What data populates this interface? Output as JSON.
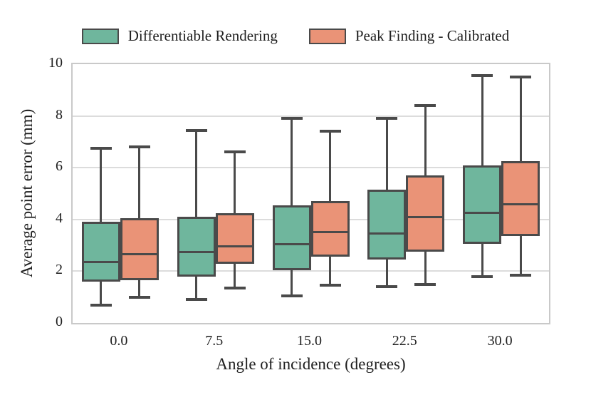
{
  "chart_data": {
    "type": "boxplot",
    "title": "",
    "xlabel": "Angle of incidence (degrees)",
    "ylabel": "Average point error (mm)",
    "categories": [
      "0.0",
      "7.5",
      "15.0",
      "22.5",
      "30.0"
    ],
    "ylim": [
      0,
      10
    ],
    "yticks": [
      "0",
      "2",
      "4",
      "6",
      "8",
      "10"
    ],
    "grid": "horizontal",
    "legend_position": "top-center",
    "series": [
      {
        "name": "Differentiable Rendering",
        "color": "#6fb69d",
        "boxes": [
          {
            "whislo": 0.7,
            "q1": 1.6,
            "med": 2.35,
            "q3": 3.9,
            "whishi": 6.75
          },
          {
            "whislo": 0.9,
            "q1": 1.8,
            "med": 2.75,
            "q3": 4.1,
            "whishi": 7.45
          },
          {
            "whislo": 1.05,
            "q1": 2.05,
            "med": 3.05,
            "q3": 4.55,
            "whishi": 7.9
          },
          {
            "whislo": 1.4,
            "q1": 2.45,
            "med": 3.45,
            "q3": 5.15,
            "whishi": 7.9
          },
          {
            "whislo": 1.8,
            "q1": 3.05,
            "med": 4.25,
            "q3": 6.1,
            "whishi": 9.55
          }
        ]
      },
      {
        "name": "Peak Finding - Calibrated",
        "color": "#ea9377",
        "boxes": [
          {
            "whislo": 1.0,
            "q1": 1.65,
            "med": 2.65,
            "q3": 4.05,
            "whishi": 6.8
          },
          {
            "whislo": 1.35,
            "q1": 2.3,
            "med": 2.95,
            "q3": 4.25,
            "whishi": 6.6
          },
          {
            "whislo": 1.45,
            "q1": 2.55,
            "med": 3.5,
            "q3": 4.7,
            "whishi": 7.4
          },
          {
            "whislo": 1.5,
            "q1": 2.75,
            "med": 4.1,
            "q3": 5.7,
            "whishi": 8.4
          },
          {
            "whislo": 1.85,
            "q1": 3.35,
            "med": 4.6,
            "q3": 6.25,
            "whishi": 9.5
          }
        ]
      }
    ],
    "style": {
      "edge_color": "#4a4a4a",
      "grid_color": "#dcdcdc",
      "spine_color": "#c9c9c9",
      "text_color": "#1f1f1f",
      "background": "#ffffff"
    }
  }
}
